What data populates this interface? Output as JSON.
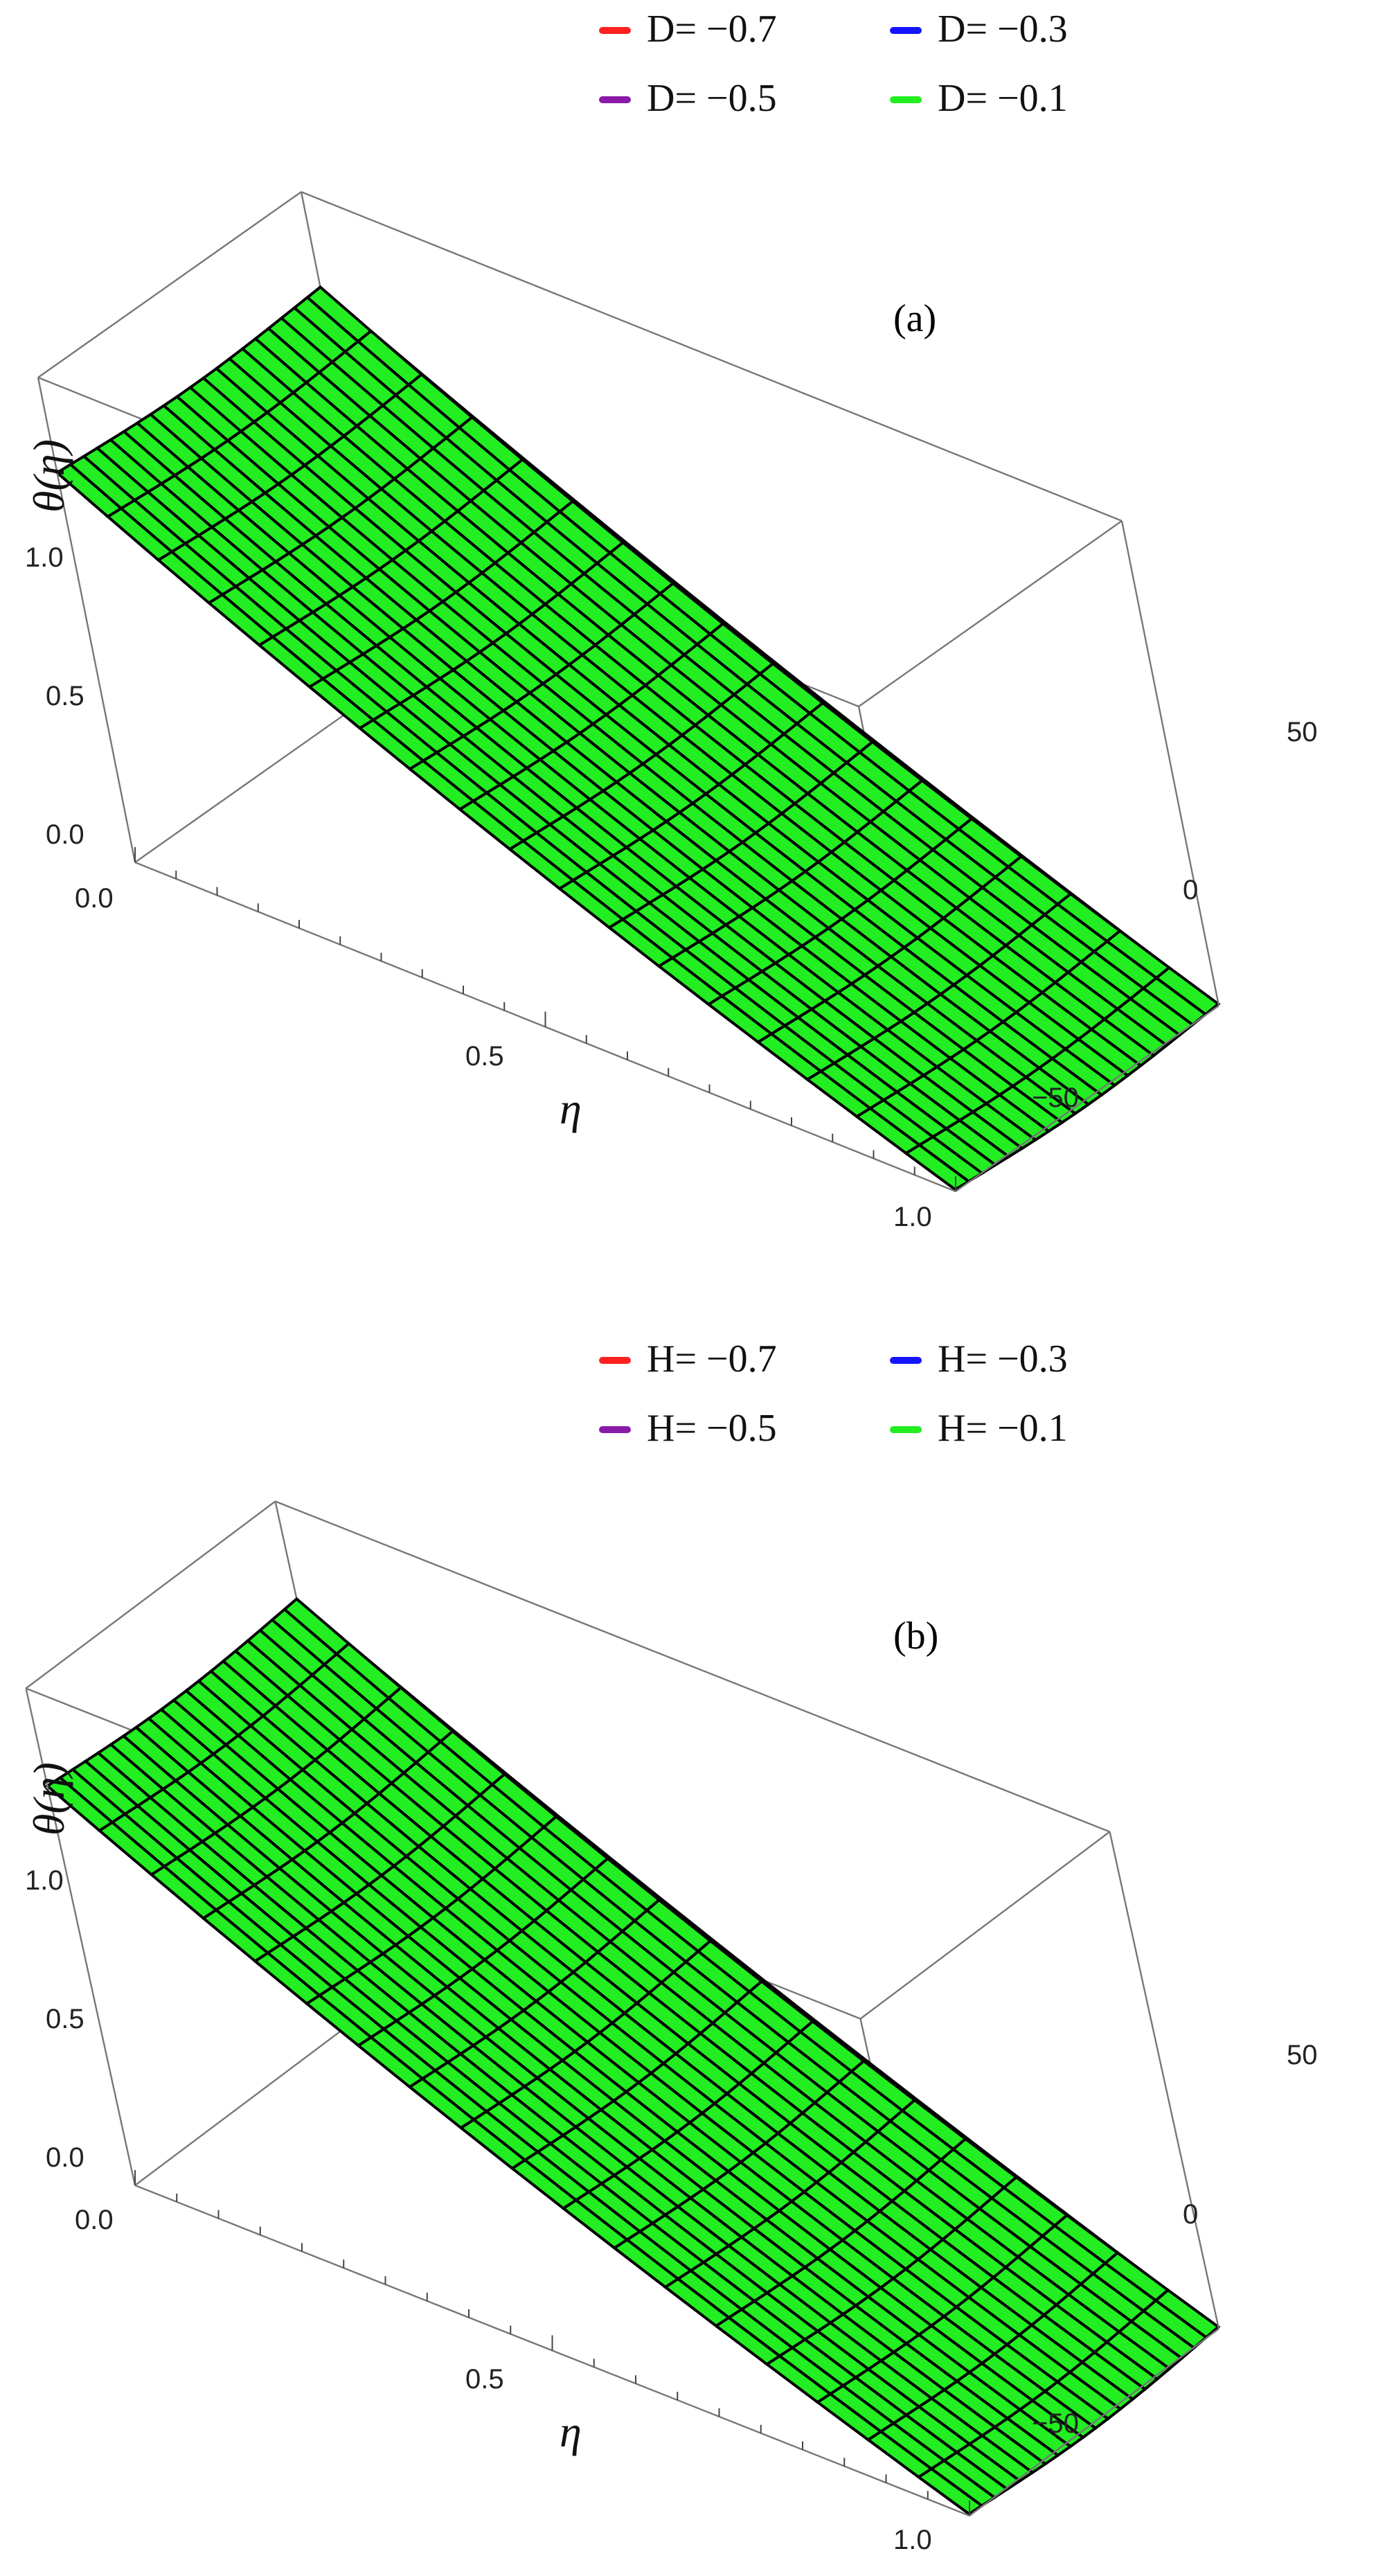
{
  "chart_data": [
    {
      "type": "surface3d",
      "panel_label": "(a)",
      "xlabel": "η",
      "ylabel": "",
      "zlabel": "θ(η)",
      "x_ticks": [
        "0.0",
        "0.5",
        "1.0"
      ],
      "y_ticks": [
        "−50",
        "0",
        "50"
      ],
      "z_ticks": [
        "0.0",
        "0.5",
        "1.0"
      ],
      "xlim": [
        0,
        1
      ],
      "ylim": [
        -75,
        75
      ],
      "zlim": [
        0,
        1
      ],
      "grid": false,
      "legend_placement": "top",
      "parameter_symbol": "D",
      "series": [
        {
          "name": "D= −0.7",
          "param": -0.7,
          "color": "#ff2020"
        },
        {
          "name": "D= −0.5",
          "param": -0.5,
          "color": "#8a1aa8"
        },
        {
          "name": "D= −0.3",
          "param": -0.3,
          "color": "#1414ff"
        },
        {
          "name": "D= −0.1",
          "param": -0.1,
          "color": "#22ee22"
        }
      ]
    },
    {
      "type": "surface3d",
      "panel_label": "(b)",
      "xlabel": "η",
      "ylabel": "",
      "zlabel": "θ(η)",
      "x_ticks": [
        "0.0",
        "0.5",
        "1.0"
      ],
      "y_ticks": [
        "−50",
        "0",
        "50"
      ],
      "z_ticks": [
        "0.0",
        "0.5",
        "1.0"
      ],
      "xlim": [
        0,
        1
      ],
      "ylim": [
        -75,
        75
      ],
      "zlim": [
        0,
        1
      ],
      "grid": false,
      "legend_placement": "top",
      "parameter_symbol": "H",
      "series": [
        {
          "name": "H= −0.7",
          "param": -0.7,
          "color": "#ff2020"
        },
        {
          "name": "H= −0.5",
          "param": -0.5,
          "color": "#8a1aa8"
        },
        {
          "name": "H= −0.3",
          "param": -0.3,
          "color": "#1414ff"
        },
        {
          "name": "H= −0.1",
          "param": -0.1,
          "color": "#22ee22"
        }
      ]
    }
  ]
}
